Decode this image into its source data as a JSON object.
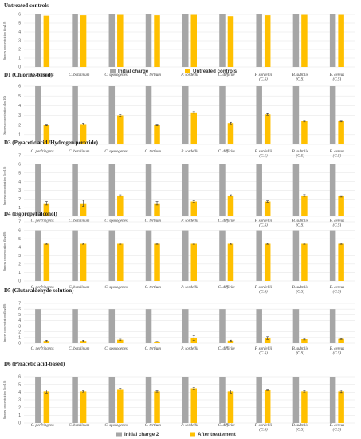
{
  "chart_data": [
    {
      "type": "bar",
      "title": "Untreated controls",
      "ylabel": "Spores concentration (log10)",
      "ylim": [
        0,
        6
      ],
      "ytick_step": 1,
      "categories": [
        "C. perfringens",
        "C. botulinum",
        "C. sporogenes",
        "C. tertium",
        "P. sordellii",
        "C. difficile",
        "P. sordellii (C.S)",
        "B. subtilis (C.S)",
        "B. cereus (C.S)"
      ],
      "series": [
        {
          "values": [
            6.0,
            6.0,
            6.0,
            6.0,
            6.0,
            6.0,
            6.0,
            6.0,
            6.0
          ],
          "err": [
            0,
            0,
            0,
            0,
            0,
            0,
            0,
            0,
            0
          ]
        },
        {
          "values": [
            5.85,
            5.9,
            5.95,
            5.9,
            5.95,
            5.8,
            5.9,
            5.95,
            5.95
          ],
          "err": [
            0,
            0,
            0,
            0,
            0,
            0,
            0,
            0,
            0
          ]
        }
      ],
      "legend": {
        "labels": [
          "Initial charge",
          "Untreated controls"
        ],
        "placement": "bottom"
      }
    },
    {
      "type": "bar",
      "title": "D1 (Chlorine-based)",
      "ylabel": "Spores concentration (log10)",
      "ylim": [
        0,
        6
      ],
      "ytick_step": 1,
      "categories": [
        "C. perfringens",
        "C. botulinum",
        "C. sporogenes",
        "C. tertium",
        "P. sordellii",
        "C. difficile",
        "P. sordellii (C.S)",
        "B. subtilis (C.S)",
        "B. cereus (C.S)"
      ],
      "series": [
        {
          "values": [
            6.0,
            6.0,
            6.0,
            6.0,
            6.0,
            6.0,
            6.0,
            6.0,
            6.0
          ],
          "err": [
            0,
            0,
            0,
            0,
            0,
            0,
            0,
            0,
            0
          ]
        },
        {
          "values": [
            2.0,
            2.1,
            3.0,
            2.0,
            3.3,
            2.2,
            3.1,
            2.4,
            2.4
          ],
          "err": [
            0.08,
            0.08,
            0.08,
            0.08,
            0.08,
            0.08,
            0.08,
            0.08,
            0.08
          ]
        }
      ]
    },
    {
      "type": "bar",
      "title": "D3 (Peracetic acid /Hydrogen peroxide)",
      "ylabel": "Spores concentration (log10)",
      "ylim": [
        0,
        7
      ],
      "ytick_step": 1,
      "categories": [
        "C. perfringens",
        "C. botulinum",
        "C. sporogenes",
        "C. tertium",
        "P. sordellii",
        "C. difficile",
        "P. sordellii (C.S)",
        "B. subtilis (C.S)",
        "B. cereus (C.S)"
      ],
      "series": [
        {
          "values": [
            6.0,
            6.0,
            6.0,
            6.0,
            6.0,
            6.0,
            6.0,
            6.0,
            6.0
          ],
          "err": [
            0,
            0,
            0,
            0,
            0,
            0,
            0,
            0,
            0
          ]
        },
        {
          "values": [
            1.5,
            1.5,
            2.4,
            1.5,
            1.7,
            2.4,
            1.7,
            2.4,
            2.3
          ],
          "err": [
            0.2,
            0.35,
            0.08,
            0.2,
            0.08,
            0.08,
            0.08,
            0.1,
            0.08
          ]
        }
      ]
    },
    {
      "type": "bar",
      "title": "D4 (Isopropyl alcohol)",
      "ylabel": "Spores concentration (log10)",
      "ylim": [
        0,
        7
      ],
      "ytick_step": 1,
      "categories": [
        "C. perfringens",
        "C. botulinum",
        "C. sporogenes",
        "C. tertium",
        "P. sordellii",
        "C. difficile",
        "P. sordellii (C.S)",
        "B. subtilis (C.S)",
        "B. cereus (C.S)"
      ],
      "series": [
        {
          "values": [
            6.0,
            6.0,
            6.0,
            6.0,
            6.0,
            6.0,
            6.0,
            6.0,
            6.0
          ],
          "err": [
            0,
            0,
            0,
            0,
            0,
            0,
            0,
            0,
            0
          ]
        },
        {
          "values": [
            4.4,
            4.4,
            4.4,
            4.4,
            4.4,
            4.4,
            4.4,
            4.4,
            4.4
          ],
          "err": [
            0.06,
            0.06,
            0.06,
            0.06,
            0.06,
            0.06,
            0.06,
            0.06,
            0.06
          ]
        }
      ]
    },
    {
      "type": "bar",
      "title": "D5 (Glutaraldehyde solution)",
      "ylabel": "Spores concentration (log10)",
      "ylim": [
        0,
        7
      ],
      "ytick_step": 1,
      "categories": [
        "C. perfringens",
        "C. botulinum",
        "C. sporogenes",
        "C. tertium",
        "P. sordellii",
        "C. difficile",
        "P. sordellii (C.S)",
        "B. subtilis (C.S)",
        "B. cereus (C.S)"
      ],
      "series": [
        {
          "values": [
            6.0,
            6.0,
            6.0,
            6.0,
            6.0,
            6.0,
            6.0,
            6.0,
            6.0
          ],
          "err": [
            0,
            0,
            0,
            0,
            0,
            0,
            0,
            0,
            0
          ]
        },
        {
          "values": [
            0.4,
            0.4,
            0.6,
            0.25,
            0.9,
            0.45,
            0.9,
            0.7,
            0.75
          ],
          "err": [
            0.12,
            0.12,
            0.1,
            0.05,
            0.4,
            0.08,
            0.25,
            0.12,
            0.08
          ]
        }
      ]
    },
    {
      "type": "bar",
      "title": "D6 (Peracetic acid-based)",
      "ylabel": "Spores concentration (log10)",
      "ylim": [
        0,
        6
      ],
      "ytick_step": 1,
      "categories": [
        "C. perfringens",
        "C. botulinum",
        "C. sporogenes",
        "C. tertium",
        "P. sordellii",
        "C. difficile",
        "P. sordellii (C.S)",
        "B. subtilis (C.S)",
        "B. cereus (C.S)"
      ],
      "series": [
        {
          "values": [
            6.0,
            6.0,
            6.0,
            6.0,
            6.0,
            6.0,
            6.0,
            6.0,
            6.0
          ],
          "err": [
            0,
            0,
            0,
            0,
            0,
            0,
            0,
            0,
            0
          ]
        },
        {
          "values": [
            4.1,
            4.1,
            4.4,
            4.1,
            4.5,
            4.1,
            4.3,
            4.1,
            4.1
          ],
          "err": [
            0.2,
            0.08,
            0.08,
            0.08,
            0.08,
            0.2,
            0.08,
            0.08,
            0.15
          ]
        }
      ],
      "legend": {
        "labels": [
          "Initial charge 2",
          "After treatement"
        ],
        "placement": "bottom"
      }
    }
  ],
  "colors": {
    "initial": "#a6a6a6",
    "treated": "#ffc000"
  }
}
